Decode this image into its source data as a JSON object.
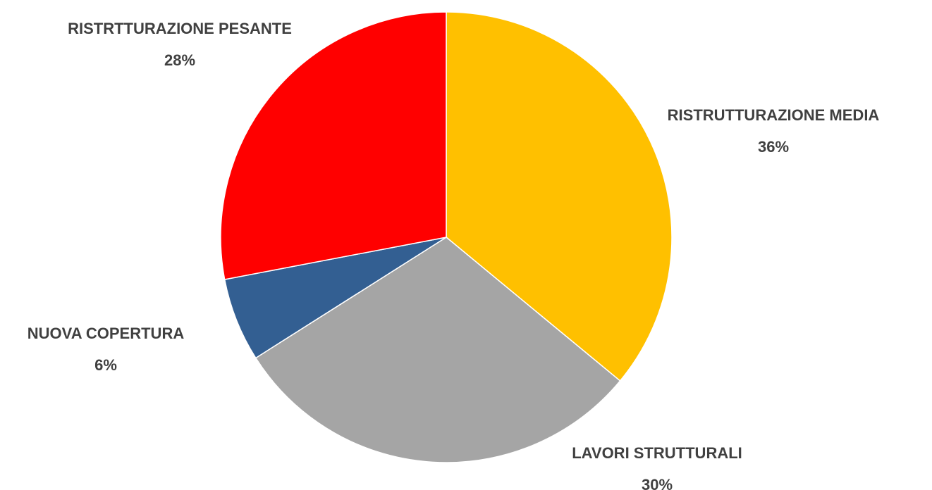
{
  "chart_data": {
    "type": "pie",
    "categories": [
      "RISTRUTTURAZIONE MEDIA",
      "LAVORI STRUTTURALI",
      "NUOVA COPERTURA",
      "RISTRTTURAZIONE PESANTE"
    ],
    "values": [
      36,
      30,
      6,
      28
    ],
    "value_labels": [
      "36%",
      "30%",
      "6%",
      "28%"
    ],
    "colors": [
      "#ffc000",
      "#a5a5a5",
      "#335f92",
      "#ff0000"
    ]
  }
}
